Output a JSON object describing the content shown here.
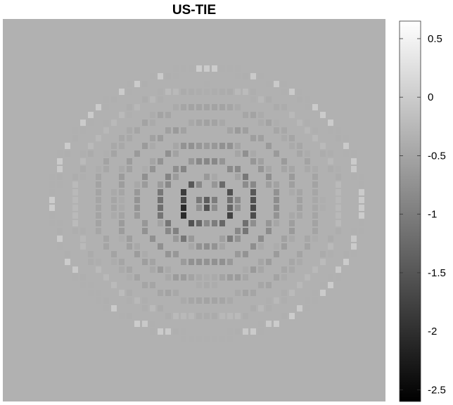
{
  "chart_data": {
    "type": "heatmap",
    "title": "US-TIE",
    "xlabel": "",
    "ylabel": "",
    "colormap": "gray",
    "clim": [
      -2.6,
      0.65
    ],
    "background_value": -0.35,
    "colorbar": {
      "ticks": [
        0.5,
        0,
        -0.5,
        -1,
        -1.5,
        -2,
        -2.5
      ],
      "tick_labels": [
        "0.5",
        "0",
        "-0.5",
        "-1",
        "-1.5",
        "-2",
        "-2.5"
      ],
      "placement": "right"
    },
    "pattern": "concentric elliptical fringe rings around two lobes, darkest values near image centre, fading to background at the edges"
  }
}
